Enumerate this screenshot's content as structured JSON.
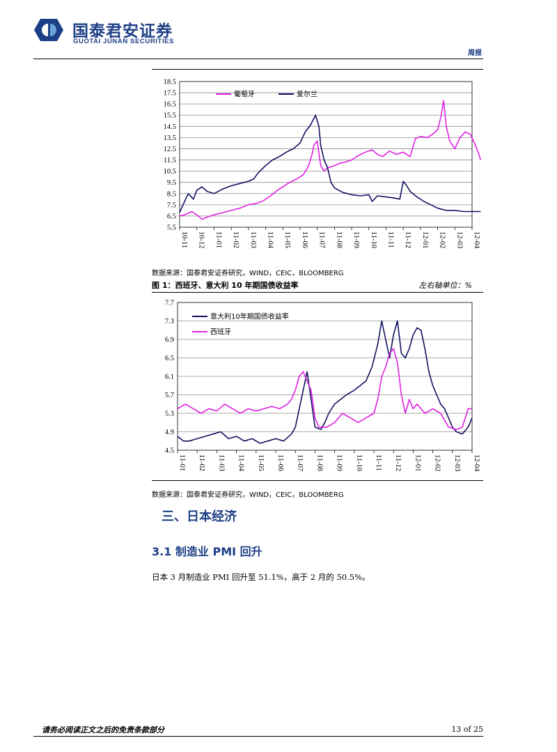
{
  "header": {
    "brand_cn": "国泰君安证券",
    "brand_en": "GUOTAI JUNAN SECURITIES",
    "doc_type": "周报",
    "brand_color": "#1d3f86"
  },
  "chart1": {
    "source": "数据来源：国泰君安证券研究，WIND，CEIC，BLOOMBERG"
  },
  "figure1": {
    "title": "图 1：西班牙、意大利 10 年期国债收益率",
    "unit": "左右轴单位：%"
  },
  "chart2": {
    "source": "数据来源：国泰君安证券研究，WIND，CEIC，BLOOMBERG"
  },
  "section": {
    "heading": "三、日本经济",
    "subheading": "3.1 制造业 PMI 回升",
    "paragraph": "日本 3 月制造业 PMI 回升至 51.1%，高于 2 月的 50.5%。"
  },
  "footer": {
    "disclaimer": "请务必阅读正文之后的免责条款部分",
    "page": "13 of 25"
  },
  "chart_data": [
    {
      "type": "line",
      "ylim": [
        5.5,
        18.5
      ],
      "yticks": [
        "18.5",
        "17.5",
        "16.5",
        "15.5",
        "14.5",
        "13.5",
        "12.5",
        "11.5",
        "10.5",
        "9.5",
        "8.5",
        "7.5",
        "6.5",
        "5.5"
      ],
      "x_labels": [
        "10-11",
        "10-12",
        "11-01",
        "11-02",
        "11-03",
        "11-04",
        "11-05",
        "11-06",
        "11-07",
        "11-08",
        "11-09",
        "11-10",
        "11-11",
        "11-12",
        "12-01",
        "12-02",
        "12-03",
        "12-04"
      ],
      "grid": true,
      "legend": "top-left",
      "series": [
        {
          "name": "葡萄牙",
          "color": "#e020e0",
          "x": [
            0,
            0.3,
            0.7,
            1.0,
            1.3,
            1.6,
            2.0,
            2.5,
            3.0,
            3.5,
            4.0,
            4.4,
            4.8,
            5.2,
            5.6,
            6.0,
            6.4,
            6.8,
            7.2,
            7.5,
            7.7,
            7.8,
            8.0,
            8.2,
            8.4,
            8.6,
            8.8,
            9.0,
            9.3,
            9.6,
            10.0,
            10.4,
            10.8,
            11.2,
            11.5,
            11.8,
            12.2,
            12.6,
            13.0,
            13.4,
            13.7,
            14.0,
            14.4,
            14.7,
            15.0,
            15.2,
            15.35,
            15.5,
            15.7,
            16.0,
            16.3,
            16.6,
            16.9,
            17.2,
            17.4,
            17.5
          ],
          "values": [
            6.5,
            6.6,
            6.9,
            6.6,
            6.2,
            6.4,
            6.6,
            6.8,
            7.0,
            7.2,
            7.5,
            7.6,
            7.8,
            8.2,
            8.7,
            9.1,
            9.5,
            9.8,
            10.2,
            11.0,
            12.0,
            12.8,
            13.2,
            11.0,
            10.5,
            10.8,
            10.9,
            11.0,
            11.2,
            11.3,
            11.5,
            11.9,
            12.2,
            12.4,
            12.0,
            11.8,
            12.3,
            12.0,
            12.2,
            11.8,
            13.4,
            13.6,
            13.5,
            13.8,
            14.2,
            15.4,
            16.8,
            14.5,
            13.2,
            12.5,
            13.5,
            14.0,
            13.8,
            12.8,
            12.0,
            11.5
          ]
        },
        {
          "name": "爱尔兰",
          "color": "#101060",
          "x": [
            0,
            0.2,
            0.5,
            0.8,
            1.0,
            1.3,
            1.6,
            2.0,
            2.5,
            3.0,
            3.5,
            4.0,
            4.3,
            4.6,
            5.0,
            5.4,
            5.8,
            6.2,
            6.6,
            7.0,
            7.3,
            7.6,
            7.9,
            8.1,
            8.2,
            8.4,
            8.6,
            8.8,
            9.0,
            9.5,
            10.0,
            10.5,
            11.0,
            11.2,
            11.5,
            12.0,
            12.5,
            12.8,
            13.0,
            13.2,
            13.4,
            13.8,
            14.2,
            14.6,
            15.0,
            15.5,
            16.0,
            16.5,
            17.0,
            17.5
          ],
          "values": [
            6.8,
            7.5,
            8.5,
            8.0,
            8.8,
            9.1,
            8.7,
            8.5,
            8.9,
            9.2,
            9.4,
            9.6,
            9.8,
            10.4,
            11.0,
            11.5,
            11.8,
            12.2,
            12.5,
            13.0,
            14.0,
            14.6,
            15.5,
            14.5,
            12.8,
            11.5,
            10.8,
            9.5,
            9.0,
            8.6,
            8.4,
            8.3,
            8.4,
            7.8,
            8.3,
            8.2,
            8.1,
            8.0,
            9.6,
            9.2,
            8.7,
            8.2,
            7.8,
            7.5,
            7.2,
            7.0,
            7.0,
            6.9,
            6.9,
            6.9
          ]
        }
      ]
    },
    {
      "type": "line",
      "ylim": [
        4.5,
        7.7
      ],
      "yticks": [
        "7.7",
        "7.3",
        "6.9",
        "6.5",
        "6.1",
        "5.7",
        "5.3",
        "4.9",
        "4.5"
      ],
      "x_labels": [
        "11-01",
        "11-02",
        "11-03",
        "11-04",
        "11-05",
        "11-06",
        "11-07",
        "11-08",
        "11-09",
        "11-10",
        "11-11",
        "11-12",
        "12-01",
        "12-02",
        "12-03",
        "12-04"
      ],
      "grid": true,
      "legend": "top-left",
      "series": [
        {
          "name": "意大利10年期国债收益率",
          "color": "#101060",
          "x": [
            0,
            0.3,
            0.6,
            1.0,
            1.4,
            1.8,
            2.2,
            2.6,
            3.0,
            3.4,
            3.8,
            4.2,
            4.6,
            5.0,
            5.4,
            5.8,
            6.0,
            6.2,
            6.4,
            6.6,
            6.8,
            7.0,
            7.3,
            7.5,
            7.7,
            8.0,
            8.3,
            8.6,
            9.0,
            9.3,
            9.6,
            9.9,
            10.2,
            10.4,
            10.6,
            10.8,
            11.0,
            11.2,
            11.4,
            11.6,
            11.8,
            12.0,
            12.2,
            12.4,
            12.6,
            12.8,
            13.0,
            13.2,
            13.4,
            13.6,
            13.8,
            14.0,
            14.2,
            14.5,
            14.8,
            15.0
          ],
          "values": [
            4.8,
            4.7,
            4.7,
            4.75,
            4.8,
            4.85,
            4.9,
            4.75,
            4.8,
            4.7,
            4.75,
            4.65,
            4.7,
            4.75,
            4.7,
            4.85,
            5.0,
            5.4,
            5.8,
            6.2,
            5.6,
            5.0,
            4.95,
            5.1,
            5.3,
            5.5,
            5.6,
            5.7,
            5.8,
            5.9,
            6.0,
            6.3,
            6.8,
            7.3,
            6.9,
            6.5,
            7.0,
            7.3,
            6.6,
            6.5,
            6.7,
            7.0,
            7.15,
            7.1,
            6.7,
            6.2,
            5.9,
            5.7,
            5.5,
            5.4,
            5.2,
            5.0,
            4.9,
            4.85,
            5.0,
            5.2
          ]
        },
        {
          "name": "西班牙",
          "color": "#e020e0",
          "x": [
            0,
            0.4,
            0.8,
            1.2,
            1.6,
            2.0,
            2.4,
            2.8,
            3.2,
            3.6,
            4.0,
            4.4,
            4.8,
            5.2,
            5.6,
            5.8,
            6.0,
            6.2,
            6.4,
            6.6,
            6.8,
            7.0,
            7.2,
            7.6,
            8.0,
            8.4,
            8.8,
            9.2,
            9.6,
            10.0,
            10.2,
            10.4,
            10.6,
            10.8,
            11.0,
            11.2,
            11.4,
            11.6,
            11.8,
            12.0,
            12.2,
            12.6,
            13.0,
            13.4,
            13.8,
            14.2,
            14.5,
            14.8,
            15.0
          ],
          "values": [
            5.4,
            5.5,
            5.4,
            5.3,
            5.4,
            5.35,
            5.5,
            5.4,
            5.3,
            5.4,
            5.35,
            5.4,
            5.45,
            5.4,
            5.5,
            5.6,
            5.8,
            6.1,
            6.2,
            6.0,
            5.8,
            5.2,
            5.0,
            5.0,
            5.1,
            5.3,
            5.2,
            5.1,
            5.2,
            5.3,
            5.6,
            6.1,
            6.3,
            6.6,
            6.7,
            6.4,
            5.7,
            5.3,
            5.6,
            5.4,
            5.5,
            5.3,
            5.4,
            5.3,
            5.0,
            4.95,
            5.0,
            5.4,
            5.4
          ]
        }
      ]
    }
  ]
}
